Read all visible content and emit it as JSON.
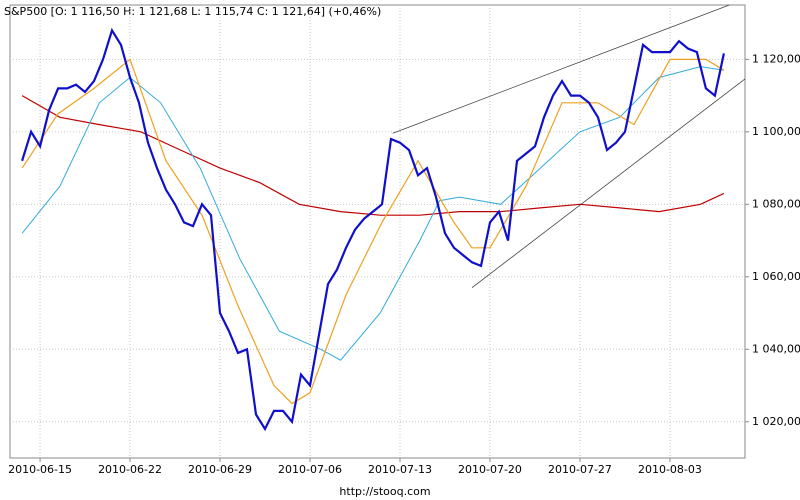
{
  "chart_data": {
    "type": "line",
    "title": "S&P500 [O: 1 116,50  H: 1 121,68  L: 1 115,74  C: 1 121,64] (+0,46%)",
    "footer": "http://stooq.com",
    "xlim": [
      -1.67,
      39.17
    ],
    "ylim": [
      1010,
      1135
    ],
    "grid": true,
    "xticks": [
      {
        "value": 0,
        "label": "2010-06-15"
      },
      {
        "value": 5,
        "label": "2010-06-22"
      },
      {
        "value": 10,
        "label": "2010-06-29"
      },
      {
        "value": 15,
        "label": "2010-07-06"
      },
      {
        "value": 20,
        "label": "2010-07-13"
      },
      {
        "value": 25,
        "label": "2010-07-20"
      },
      {
        "value": 30,
        "label": "2010-07-27"
      },
      {
        "value": 35,
        "label": "2010-08-03"
      }
    ],
    "yticks": [
      {
        "value": 1020,
        "label": "1 020,00"
      },
      {
        "value": 1040,
        "label": "1 040,00"
      },
      {
        "value": 1060,
        "label": "1 060,00"
      },
      {
        "value": 1080,
        "label": "1 080,00"
      },
      {
        "value": 1100,
        "label": "1 100,00"
      },
      {
        "value": 1120,
        "label": "1 120,00"
      }
    ],
    "series": [
      {
        "color": "#c00000",
        "width": 1.2,
        "x": [
          -1,
          1.1,
          3.3,
          5.6,
          7.8,
          10,
          12.2,
          14.4,
          16.7,
          18.9,
          21.1,
          23.3,
          25.6,
          27.8,
          30,
          32.2,
          34.4,
          36.7,
          38
        ],
        "values": [
          1110,
          1104,
          1102,
          1100,
          1095,
          1090,
          1086,
          1080,
          1078,
          1077,
          1077,
          1078,
          1078,
          1079,
          1080,
          1079,
          1078,
          1080,
          1083
        ]
      },
      {
        "color": "#33aadd",
        "width": 1,
        "x": [
          -1,
          1.1,
          3.3,
          5,
          6.7,
          8.9,
          11.1,
          13.3,
          15.6,
          16.7,
          18.9,
          21.1,
          22.2,
          23.3,
          25.6,
          27.8,
          30,
          32.2,
          34.4,
          36.7,
          38
        ],
        "values": [
          1072,
          1085,
          1108,
          1115,
          1108,
          1090,
          1065,
          1045,
          1040,
          1037,
          1050,
          1070,
          1081,
          1082,
          1080,
          1090,
          1100,
          1104,
          1115,
          1118,
          1117
        ]
      },
      {
        "color": "#f0a020",
        "width": 1.2,
        "x": [
          -1,
          1,
          3,
          5,
          7,
          9,
          11,
          13,
          14,
          15,
          17,
          19,
          21,
          23,
          24,
          25,
          27,
          29,
          31,
          33,
          35,
          37,
          38
        ],
        "values": [
          1090,
          1105,
          1112,
          1120,
          1092,
          1077,
          1052,
          1030,
          1025,
          1028,
          1055,
          1075,
          1092,
          1075,
          1068,
          1068,
          1085,
          1108,
          1108,
          1102,
          1120,
          1120,
          1117
        ]
      },
      {
        "color": "#1010cc",
        "width": 2.2,
        "x": [
          -1,
          -0.5,
          0,
          0.5,
          1,
          1.5,
          2,
          2.5,
          3,
          3.5,
          4,
          4.5,
          5,
          5.5,
          6,
          6.5,
          7,
          7.5,
          8,
          8.5,
          9,
          9.5,
          10,
          10.5,
          11,
          11.5,
          12,
          12.5,
          13,
          13.5,
          14,
          14.5,
          15,
          15.5,
          16,
          16.5,
          17,
          17.5,
          18,
          18.5,
          19,
          19.5,
          20,
          20.5,
          21,
          21.5,
          22,
          22.5,
          23,
          23.5,
          24,
          24.5,
          25,
          25.5,
          26,
          26.5,
          27,
          27.5,
          28,
          28.5,
          29,
          29.5,
          30,
          30.5,
          31,
          31.5,
          32,
          32.5,
          33,
          33.5,
          34,
          34.5,
          35,
          35.5,
          36,
          36.5,
          37,
          37.5,
          38
        ],
        "values": [
          1092,
          1100,
          1096,
          1106,
          1112,
          1112,
          1113,
          1111,
          1114,
          1120,
          1128,
          1124,
          1115,
          1108,
          1097,
          1090,
          1084,
          1080,
          1075,
          1074,
          1080,
          1077,
          1050,
          1045,
          1039,
          1040,
          1022,
          1018,
          1023,
          1023,
          1020,
          1033,
          1030,
          1044,
          1058,
          1062,
          1068,
          1073,
          1076,
          1078,
          1080,
          1098,
          1097,
          1095,
          1088,
          1090,
          1082,
          1072,
          1068,
          1066,
          1064,
          1063,
          1075,
          1078,
          1070,
          1092,
          1094,
          1096,
          1104,
          1110,
          1114,
          1110,
          1110,
          1108,
          1104,
          1095,
          1097,
          1100,
          1112,
          1124,
          1122,
          1122,
          1122,
          1125,
          1123,
          1122,
          1112,
          1110,
          1121.64
        ]
      },
      {
        "color": "#444444",
        "width": 0.8,
        "x": [
          19.6,
          38.3
        ],
        "values": [
          1099.6,
          1135
        ]
      },
      {
        "color": "#444444",
        "width": 0.8,
        "x": [
          24,
          39.17
        ],
        "values": [
          1057,
          1114.6
        ]
      }
    ]
  }
}
